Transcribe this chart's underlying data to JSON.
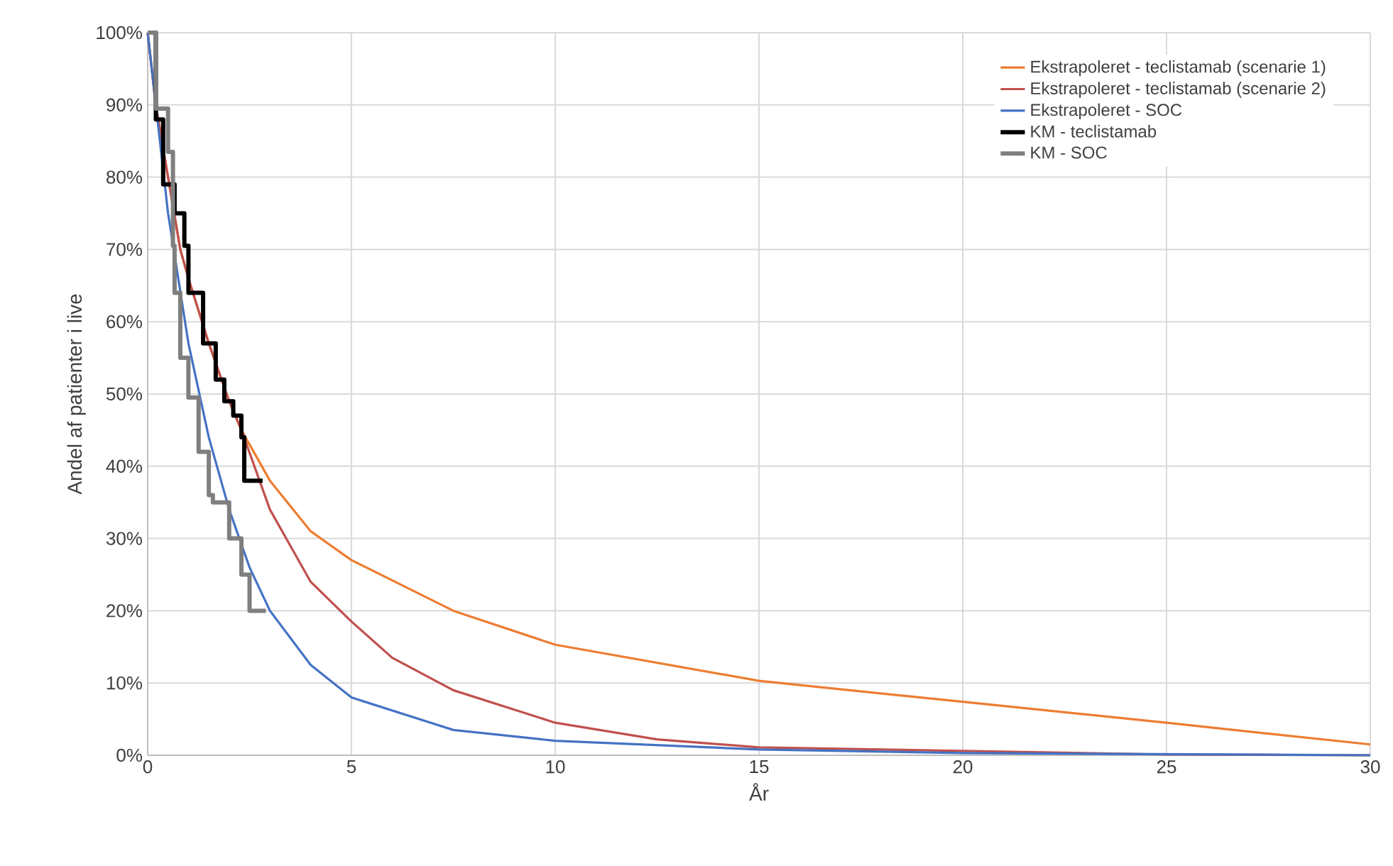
{
  "chart_data": {
    "type": "line",
    "xlabel": "År",
    "ylabel": "Andel af patienter i live",
    "xlim": [
      0,
      30
    ],
    "ylim": [
      0,
      100
    ],
    "xticks": [
      0,
      5,
      10,
      15,
      20,
      25,
      30
    ],
    "yticks": [
      {
        "value": 0,
        "label": "0%"
      },
      {
        "value": 10,
        "label": "10%"
      },
      {
        "value": 20,
        "label": "20%"
      },
      {
        "value": 30,
        "label": "30%"
      },
      {
        "value": 40,
        "label": "40%"
      },
      {
        "value": 50,
        "label": "50%"
      },
      {
        "value": 60,
        "label": "60%"
      },
      {
        "value": 70,
        "label": "70%"
      },
      {
        "value": 80,
        "label": "80%"
      },
      {
        "value": 90,
        "label": "90%"
      },
      {
        "value": 100,
        "label": "100%"
      }
    ],
    "grid": true,
    "legend": "top right",
    "marker": "none",
    "line_style": "solid",
    "series": [
      {
        "name": "Ekstrapoleret - teclistamab (scenarie 1)",
        "color": "#ed7d31",
        "x": [
          0,
          0.2,
          0.5,
          0.8,
          1,
          1.5,
          2,
          2.3,
          3,
          4,
          5,
          7.5,
          10,
          15,
          20,
          25,
          30
        ],
        "values": [
          100,
          90,
          80,
          70,
          66,
          57,
          49,
          45,
          38,
          31,
          27,
          20,
          15.3,
          10.3,
          7.4,
          4.5,
          1.5
        ]
      },
      {
        "name": "Ekstrapoleret - teclistamab (scenarie 2)",
        "color": "#c0504d",
        "x": [
          0,
          0.2,
          0.5,
          0.8,
          1,
          1.5,
          2,
          2.3,
          3,
          4,
          5,
          6,
          7.5,
          10,
          12.5,
          15,
          20,
          25,
          30
        ],
        "values": [
          100,
          90,
          80,
          70,
          66,
          57,
          49,
          45,
          34,
          24,
          18.5,
          13.5,
          9,
          4.5,
          2.2,
          1.1,
          null,
          0.1,
          0
        ]
      },
      {
        "name": "Ekstrapoleret - SOC",
        "color": "#4472c4",
        "x": [
          0,
          0.5,
          1,
          1.5,
          2,
          2.5,
          3,
          4,
          5,
          7.5,
          10,
          15,
          20,
          30
        ],
        "values": [
          100,
          75,
          57,
          44,
          34,
          26,
          20,
          12.5,
          8,
          3.5,
          2,
          0.8,
          0.3,
          0
        ]
      },
      {
        "name": "KM - teclistamab",
        "color": "#000000",
        "type": "step",
        "x": [
          0,
          0.2,
          0.38,
          0.66,
          0.9,
          1.0,
          1.36,
          1.67,
          1.88,
          2.1,
          2.3,
          2.37,
          2.82
        ],
        "values": [
          100,
          88,
          79,
          75,
          70.5,
          64,
          57,
          52,
          49,
          47,
          44,
          38,
          38
        ]
      },
      {
        "name": "KM - SOC",
        "color": "#7f7f7f",
        "type": "step",
        "x": [
          0,
          0.2,
          0.5,
          0.62,
          0.66,
          0.8,
          1.0,
          1.25,
          1.5,
          1.6,
          2.0,
          2.3,
          2.5,
          2.9
        ],
        "values": [
          100,
          89.5,
          83.5,
          70.5,
          64,
          55,
          49.5,
          42,
          36,
          35,
          30,
          25,
          20,
          20
        ]
      }
    ]
  }
}
